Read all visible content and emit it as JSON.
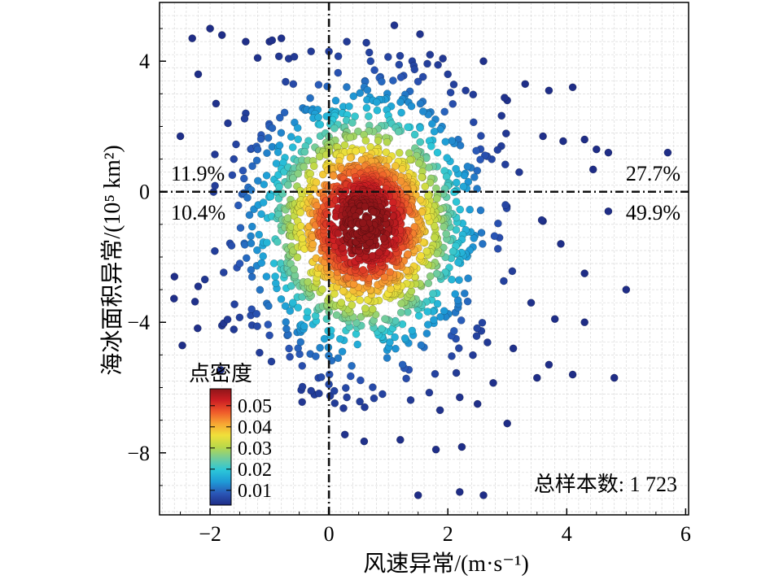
{
  "chart_data": {
    "type": "scatter",
    "xlabel": "风速异常/(m·s⁻¹)",
    "ylabel": "海冰面积异常/(10⁵ km²)",
    "xlim": [
      -2.85,
      6.05
    ],
    "ylim": [
      -9.9,
      5.8
    ],
    "xticks": [
      -2,
      0,
      2,
      4,
      6
    ],
    "xtick_labels": [
      "−2",
      "0",
      "2",
      "4",
      "6"
    ],
    "yticks": [
      -8,
      -4,
      0,
      4
    ],
    "ytick_labels": [
      "−8",
      "−4",
      "0",
      "4"
    ],
    "grid": true,
    "reference_lines": {
      "x": 0,
      "y": 0,
      "style": "dash-dot"
    },
    "quadrant_labels": {
      "upper_left": "11.9%",
      "upper_right": "27.7%",
      "lower_left": "10.4%",
      "lower_right": "49.9%"
    },
    "sample_label": "总样本数: 1 723",
    "colorbar": {
      "title": "点密度",
      "tick_values": [
        0.01,
        0.02,
        0.03,
        0.04,
        0.05
      ],
      "tick_labels": [
        "0.01",
        "0.02",
        "0.03",
        "0.04",
        "0.05"
      ],
      "range": [
        0.003,
        0.058
      ],
      "colors": [
        "#1f2d86",
        "#2a56b6",
        "#1e9ad6",
        "#2bc6d8",
        "#72cc9c",
        "#b9d84a",
        "#f0e03a",
        "#f7a533",
        "#ef5a2a",
        "#cc1e23",
        "#8e1519"
      ]
    },
    "density_center": [
      0.6,
      -1.0
    ],
    "outlier_points": [
      [
        -2.3,
        4.7
      ],
      [
        -2.0,
        5.0
      ],
      [
        -1.8,
        4.8
      ],
      [
        -2.2,
        3.6
      ],
      [
        -1.9,
        2.7
      ],
      [
        -2.5,
        1.7
      ],
      [
        -2.6,
        -2.6
      ],
      [
        -2.2,
        -2.9
      ],
      [
        -1.8,
        -4.1
      ],
      [
        -1.4,
        4.6
      ],
      [
        -1.2,
        4.1
      ],
      [
        -1.0,
        4.6
      ],
      [
        -0.8,
        4.7
      ],
      [
        -0.6,
        3.3
      ],
      [
        -0.3,
        4.3
      ],
      [
        0.0,
        4.3
      ],
      [
        0.3,
        4.6
      ],
      [
        0.7,
        4.0
      ],
      [
        1.1,
        5.1
      ],
      [
        1.4,
        4.0
      ],
      [
        1.7,
        4.2
      ],
      [
        2.0,
        3.6
      ],
      [
        2.3,
        3.1
      ],
      [
        2.6,
        4.0
      ],
      [
        3.0,
        2.8
      ],
      [
        3.3,
        3.3
      ],
      [
        3.7,
        3.1
      ],
      [
        4.1,
        3.2
      ],
      [
        4.3,
        1.6
      ],
      [
        4.5,
        1.3
      ],
      [
        4.7,
        1.2
      ],
      [
        5.7,
        1.2
      ],
      [
        5.0,
        -3.0
      ],
      [
        4.7,
        -0.6
      ],
      [
        4.3,
        -2.5
      ],
      [
        4.3,
        -4.0
      ],
      [
        4.1,
        -5.6
      ],
      [
        4.8,
        -5.7
      ],
      [
        3.7,
        -5.3
      ],
      [
        3.5,
        -5.7
      ],
      [
        3.1,
        -4.8
      ],
      [
        3.0,
        -7.1
      ],
      [
        2.6,
        -9.3
      ],
      [
        2.2,
        -9.2
      ],
      [
        1.5,
        -9.3
      ],
      [
        1.8,
        -7.9
      ],
      [
        1.2,
        -7.6
      ],
      [
        2.5,
        -6.5
      ],
      [
        2.2,
        -6.3
      ],
      [
        0.9,
        -6.2
      ],
      [
        0.6,
        -6.6
      ],
      [
        0.3,
        -6.3
      ],
      [
        0.0,
        -5.9
      ],
      [
        -0.3,
        -6.1
      ],
      [
        -0.7,
        -4.4
      ],
      [
        -1.0,
        -4.4
      ],
      [
        -1.3,
        -3.6
      ],
      [
        -1.5,
        -2.2
      ],
      [
        -1.6,
        1.0
      ],
      [
        -1.7,
        2.1
      ],
      [
        -1.4,
        2.4
      ],
      [
        -1.2,
        1.3
      ],
      [
        3.8,
        -3.9
      ],
      [
        3.4,
        -3.4
      ],
      [
        3.9,
        -1.6
      ],
      [
        3.6,
        -0.9
      ],
      [
        3.2,
        0.6
      ],
      [
        3.6,
        1.7
      ],
      [
        2.9,
        1.4
      ],
      [
        -0.6,
        -1.8
      ],
      [
        -0.8,
        0.7
      ],
      [
        -0.4,
        2.5
      ]
    ]
  }
}
